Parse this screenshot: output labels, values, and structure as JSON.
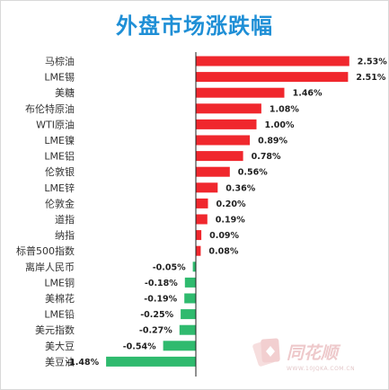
{
  "chart_data": {
    "type": "bar",
    "orientation": "horizontal",
    "title": "外盘市场涨跌幅",
    "xlabel": "",
    "ylabel": "",
    "unit": "%",
    "grid": false,
    "legend": "none",
    "colors": {
      "positive": "#f0272d",
      "negative": "#2fba6e",
      "title": "#1f8fd6",
      "axis": "#222222"
    },
    "categories": [
      "马棕油",
      "LME锡",
      "美糖",
      "布伦特原油",
      "WTI原油",
      "LME镍",
      "LME铝",
      "伦敦银",
      "LME锌",
      "伦敦金",
      "道指",
      "纳指",
      "标普500指数",
      "离岸人民币",
      "LME铜",
      "美棉花",
      "LME铅",
      "美元指数",
      "美大豆",
      "美豆油"
    ],
    "values": [
      2.53,
      2.51,
      1.46,
      1.08,
      1.0,
      0.89,
      0.78,
      0.56,
      0.36,
      0.2,
      0.19,
      0.09,
      0.08,
      -0.05,
      -0.18,
      -0.19,
      -0.25,
      -0.27,
      -0.54,
      -1.48
    ],
    "labels": [
      "2.53%",
      "2.51%",
      "1.46%",
      "1.08%",
      "1.00%",
      "0.89%",
      "0.78%",
      "0.56%",
      "0.36%",
      "0.20%",
      "0.19%",
      "0.09%",
      "0.08%",
      "-0.05%",
      "-0.18%",
      "-0.19%",
      "-0.25%",
      "-0.27%",
      "-0.54%",
      "-1.48%"
    ]
  },
  "watermark": {
    "logo_icon": "tonghuashun-card-logo-icon",
    "brand": "同花顺",
    "url": "WWW.10JQKA.COM.CN"
  }
}
